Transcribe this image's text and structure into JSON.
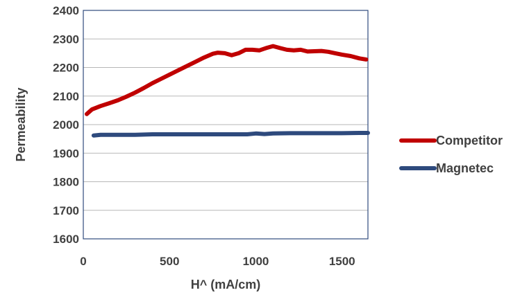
{
  "chart_data": {
    "type": "line",
    "title": "",
    "xlabel": "H^ (mA/cm)",
    "ylabel": "Permeability",
    "xlim": [
      0,
      1650
    ],
    "ylim": [
      1600,
      2400
    ],
    "x_ticks": [
      "0",
      "500",
      "1000",
      "1500"
    ],
    "y_ticks": [
      "1600",
      "1700",
      "1800",
      "1900",
      "2000",
      "2100",
      "2200",
      "2300",
      "2400"
    ],
    "grid": "horizontal",
    "legend_position": "right",
    "series": [
      {
        "name": "Competitor",
        "color": "#c00000",
        "x": [
          20,
          50,
          100,
          150,
          200,
          250,
          300,
          350,
          400,
          450,
          500,
          550,
          600,
          650,
          700,
          750,
          780,
          820,
          860,
          900,
          940,
          980,
          1020,
          1060,
          1100,
          1140,
          1180,
          1220,
          1260,
          1300,
          1340,
          1380,
          1420,
          1460,
          1500,
          1550,
          1600,
          1640
        ],
        "y": [
          2037,
          2053,
          2065,
          2075,
          2085,
          2098,
          2112,
          2128,
          2145,
          2160,
          2175,
          2190,
          2205,
          2220,
          2235,
          2248,
          2252,
          2250,
          2243,
          2250,
          2262,
          2262,
          2260,
          2268,
          2275,
          2268,
          2262,
          2260,
          2262,
          2256,
          2257,
          2258,
          2255,
          2250,
          2245,
          2240,
          2232,
          2228
        ]
      },
      {
        "name": "Magnetec",
        "color": "#2e4a7d",
        "x": [
          60,
          100,
          200,
          300,
          400,
          500,
          600,
          700,
          800,
          900,
          950,
          1000,
          1050,
          1100,
          1200,
          1300,
          1400,
          1500,
          1600,
          1650
        ],
        "y": [
          1962,
          1964,
          1964,
          1964,
          1966,
          1966,
          1966,
          1966,
          1966,
          1966,
          1966,
          1969,
          1967,
          1969,
          1970,
          1970,
          1970,
          1970,
          1971,
          1971
        ]
      }
    ]
  }
}
